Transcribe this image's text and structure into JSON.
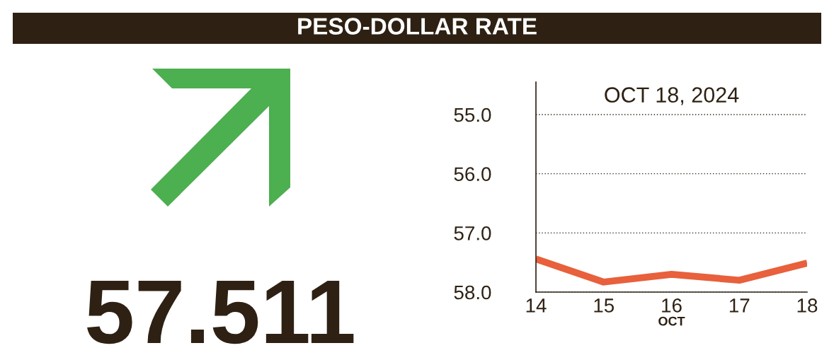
{
  "chart_data": {
    "type": "line",
    "title": "PESO-DOLLAR RATE",
    "subtitle": "OCT 18, 2024",
    "xlabel": "OCT",
    "x": [
      14,
      15,
      16,
      17,
      18
    ],
    "series": [
      {
        "color": "#e8603c",
        "values": [
          57.44,
          57.83,
          57.7,
          57.8,
          57.51
        ]
      }
    ],
    "xlim": [
      14,
      18
    ],
    "xticks": [
      14,
      15,
      16,
      17,
      18
    ],
    "ylim": [
      58.0,
      54.45
    ],
    "yticks": [
      {
        "value": 55,
        "label": "55.0"
      },
      {
        "value": 56,
        "label": "56.0"
      },
      {
        "value": 57,
        "label": "57.0"
      },
      {
        "value": 58,
        "label": "58.0"
      }
    ],
    "grid": "y",
    "line_style": "solid",
    "annotations": [
      "57.511"
    ]
  }
}
